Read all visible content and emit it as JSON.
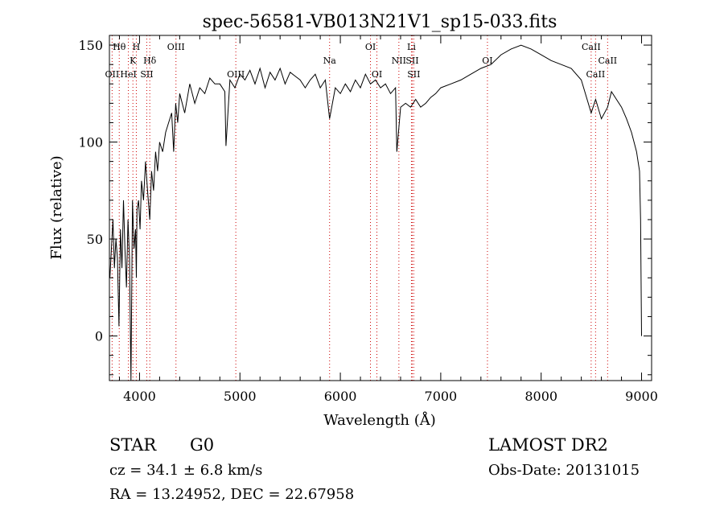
{
  "chart_data": {
    "type": "line",
    "title": "spec-56581-VB013N21V1_sp15-033.fits",
    "xlabel": "Wavelength (Å)",
    "ylabel": "Flux (relative)",
    "xlim": [
      3700,
      9100
    ],
    "ylim": [
      -23,
      155
    ],
    "xticks": [
      4000,
      5000,
      6000,
      7000,
      8000,
      9000
    ],
    "yticks": [
      0,
      50,
      100,
      150
    ],
    "grid": false,
    "line_color": "#000000",
    "marker_color": "#cc0000",
    "series": [
      {
        "x": [
          3705,
          3720,
          3735,
          3750,
          3765,
          3780,
          3795,
          3810,
          3825,
          3840,
          3855,
          3870,
          3885,
          3900,
          3915,
          3930,
          3945,
          3960,
          3968,
          3975,
          3990,
          4005,
          4020,
          4040,
          4060,
          4080,
          4102,
          4120,
          4140,
          4160,
          4180,
          4200,
          4230,
          4260,
          4290,
          4320,
          4340,
          4360,
          4380,
          4400,
          4450,
          4500,
          4550,
          4600,
          4650,
          4700,
          4750,
          4800,
          4850,
          4861,
          4900,
          4950,
          5000,
          5050,
          5100,
          5150,
          5200,
          5250,
          5300,
          5350,
          5400,
          5450,
          5500,
          5550,
          5600,
          5650,
          5700,
          5750,
          5800,
          5850,
          5893,
          5950,
          6000,
          6050,
          6100,
          6150,
          6200,
          6250,
          6300,
          6350,
          6400,
          6450,
          6500,
          6550,
          6563,
          6600,
          6650,
          6700,
          6750,
          6800,
          6850,
          6900,
          6950,
          7000,
          7100,
          7200,
          7300,
          7400,
          7500,
          7600,
          7700,
          7800,
          7900,
          8000,
          8100,
          8200,
          8300,
          8400,
          8498,
          8542,
          8600,
          8662,
          8700,
          8750,
          8800,
          8850,
          8900,
          8950,
          8980,
          8990,
          9000
        ],
        "values": [
          30,
          45,
          60,
          35,
          50,
          40,
          5,
          55,
          35,
          70,
          45,
          25,
          60,
          40,
          -23,
          70,
          45,
          55,
          30,
          65,
          70,
          55,
          80,
          70,
          90,
          75,
          60,
          85,
          75,
          95,
          85,
          100,
          95,
          105,
          110,
          115,
          95,
          120,
          110,
          125,
          115,
          130,
          120,
          128,
          125,
          133,
          130,
          130,
          126,
          98,
          132,
          128,
          135,
          132,
          137,
          130,
          138,
          128,
          136,
          132,
          138,
          130,
          136,
          134,
          132,
          128,
          132,
          135,
          128,
          132,
          112,
          128,
          125,
          130,
          126,
          132,
          128,
          135,
          130,
          132,
          128,
          130,
          125,
          128,
          95,
          118,
          120,
          118,
          122,
          118,
          120,
          123,
          125,
          128,
          130,
          132,
          135,
          138,
          140,
          145,
          148,
          150,
          148,
          145,
          142,
          140,
          138,
          132,
          115,
          122,
          112,
          118,
          126,
          122,
          118,
          112,
          105,
          95,
          85,
          60,
          0
        ]
      }
    ],
    "spectral_lines": [
      {
        "label": "OII",
        "wavelength": 3727,
        "row": 3
      },
      {
        "label": "Hθ",
        "wavelength": 3798,
        "row": 1
      },
      {
        "label": "HeI",
        "wavelength": 3889,
        "row": 3
      },
      {
        "label": "K",
        "wavelength": 3934,
        "row": 2
      },
      {
        "label": "H",
        "wavelength": 3968,
        "row": 1
      },
      {
        "label": "SII",
        "wavelength": 4072,
        "row": 3
      },
      {
        "label": "Hδ",
        "wavelength": 4102,
        "row": 2
      },
      {
        "label": "OIII",
        "wavelength": 4363,
        "row": 1
      },
      {
        "label": "OIII",
        "wavelength": 4959,
        "row": 3
      },
      {
        "label": "Na",
        "wavelength": 5893,
        "row": 2
      },
      {
        "label": "OI",
        "wavelength": 6300,
        "row": 1
      },
      {
        "label": "OI",
        "wavelength": 6364,
        "row": 3
      },
      {
        "label": "NII",
        "wavelength": 6583,
        "row": 2
      },
      {
        "label": "Li",
        "wavelength": 6708,
        "row": 1
      },
      {
        "label": "SII",
        "wavelength": 6716,
        "row": 2
      },
      {
        "label": "SII",
        "wavelength": 6731,
        "row": 3
      },
      {
        "label": "OI",
        "wavelength": 7465,
        "row": 2
      },
      {
        "label": "CaII",
        "wavelength": 8498,
        "row": 1
      },
      {
        "label": "CaII",
        "wavelength": 8542,
        "row": 3
      },
      {
        "label": "CaII",
        "wavelength": 8662,
        "row": 2
      }
    ]
  },
  "info": {
    "object_class": "STAR",
    "subclass": "G0",
    "survey": "LAMOST DR2",
    "cz": "cz = 34.1 ± 6.8 km/s",
    "obs_date": "Obs-Date: 20131015",
    "coords": "RA =  13.24952, DEC =  22.67958"
  }
}
